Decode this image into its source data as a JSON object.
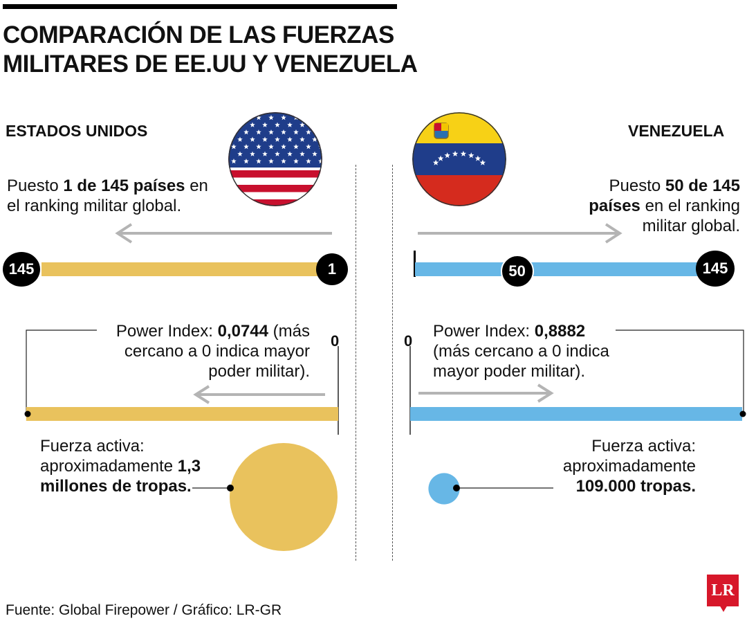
{
  "title": {
    "line1": "COMPARACIÓN DE LAS FUERZAS",
    "line2": "MILITARES DE EE.UU Y VENEZUELA"
  },
  "colors": {
    "us": "#e9c25d",
    "ve": "#67b7e6",
    "dot": "#000000",
    "arrow": "#b4b4b4",
    "logo": "#d7172a"
  },
  "us": {
    "name": "ESTADOS UNIDOS",
    "flag_icon": "usa-flag-icon",
    "rank_text": {
      "pre": "Puesto ",
      "bold": "1 de 145 países",
      "post": "en el ranking militar global."
    },
    "power_text": {
      "pre": "Power Index: ",
      "bold": "0,0744",
      "post": " (más cercano a 0 indica mayor poder militar)."
    },
    "force_text": {
      "pre": "Fuerza activa: aproximadamente ",
      "bold": "1,3 millones de tropas."
    }
  },
  "ve": {
    "name": "VENEZUELA",
    "flag_icon": "venezuela-flag-icon",
    "rank_text": {
      "pre": "Puesto ",
      "bold": "50 de 145 países",
      "post": " en el ranking militar global."
    },
    "power_text": {
      "pre": "Power Index: ",
      "bold": "0,8882",
      "post": " (más cercano a 0 indica mayor poder militar)."
    },
    "force_text": {
      "pre": "Fuerza activa: aproximadamente ",
      "bold": "109.000 tropas."
    }
  },
  "chart_data": [
    {
      "type": "bar",
      "measure": "Ranking militar global",
      "scale": {
        "min": 1,
        "max": 145
      },
      "tick_labels": [
        "145",
        "1",
        "50",
        "145"
      ],
      "series": [
        {
          "name": "ESTADOS UNIDOS",
          "values": [
            1
          ]
        },
        {
          "name": "VENEZUELA",
          "values": [
            50
          ]
        }
      ]
    },
    {
      "type": "bar",
      "measure": "Power Index",
      "scale": {
        "min": 0,
        "max": 0.8882
      },
      "tick_labels": [
        "0",
        "0"
      ],
      "series": [
        {
          "name": "ESTADOS UNIDOS",
          "values": [
            0.0744
          ]
        },
        {
          "name": "VENEZUELA",
          "values": [
            0.8882
          ]
        }
      ]
    },
    {
      "type": "scatter",
      "measure": "Fuerza activa (tropas)",
      "series": [
        {
          "name": "ESTADOS UNIDOS",
          "values": [
            1300000
          ]
        },
        {
          "name": "VENEZUELA",
          "values": [
            109000
          ]
        }
      ]
    }
  ],
  "source": "Fuente: Global Firepower / Gráfico: LR-GR",
  "logo": "LR"
}
